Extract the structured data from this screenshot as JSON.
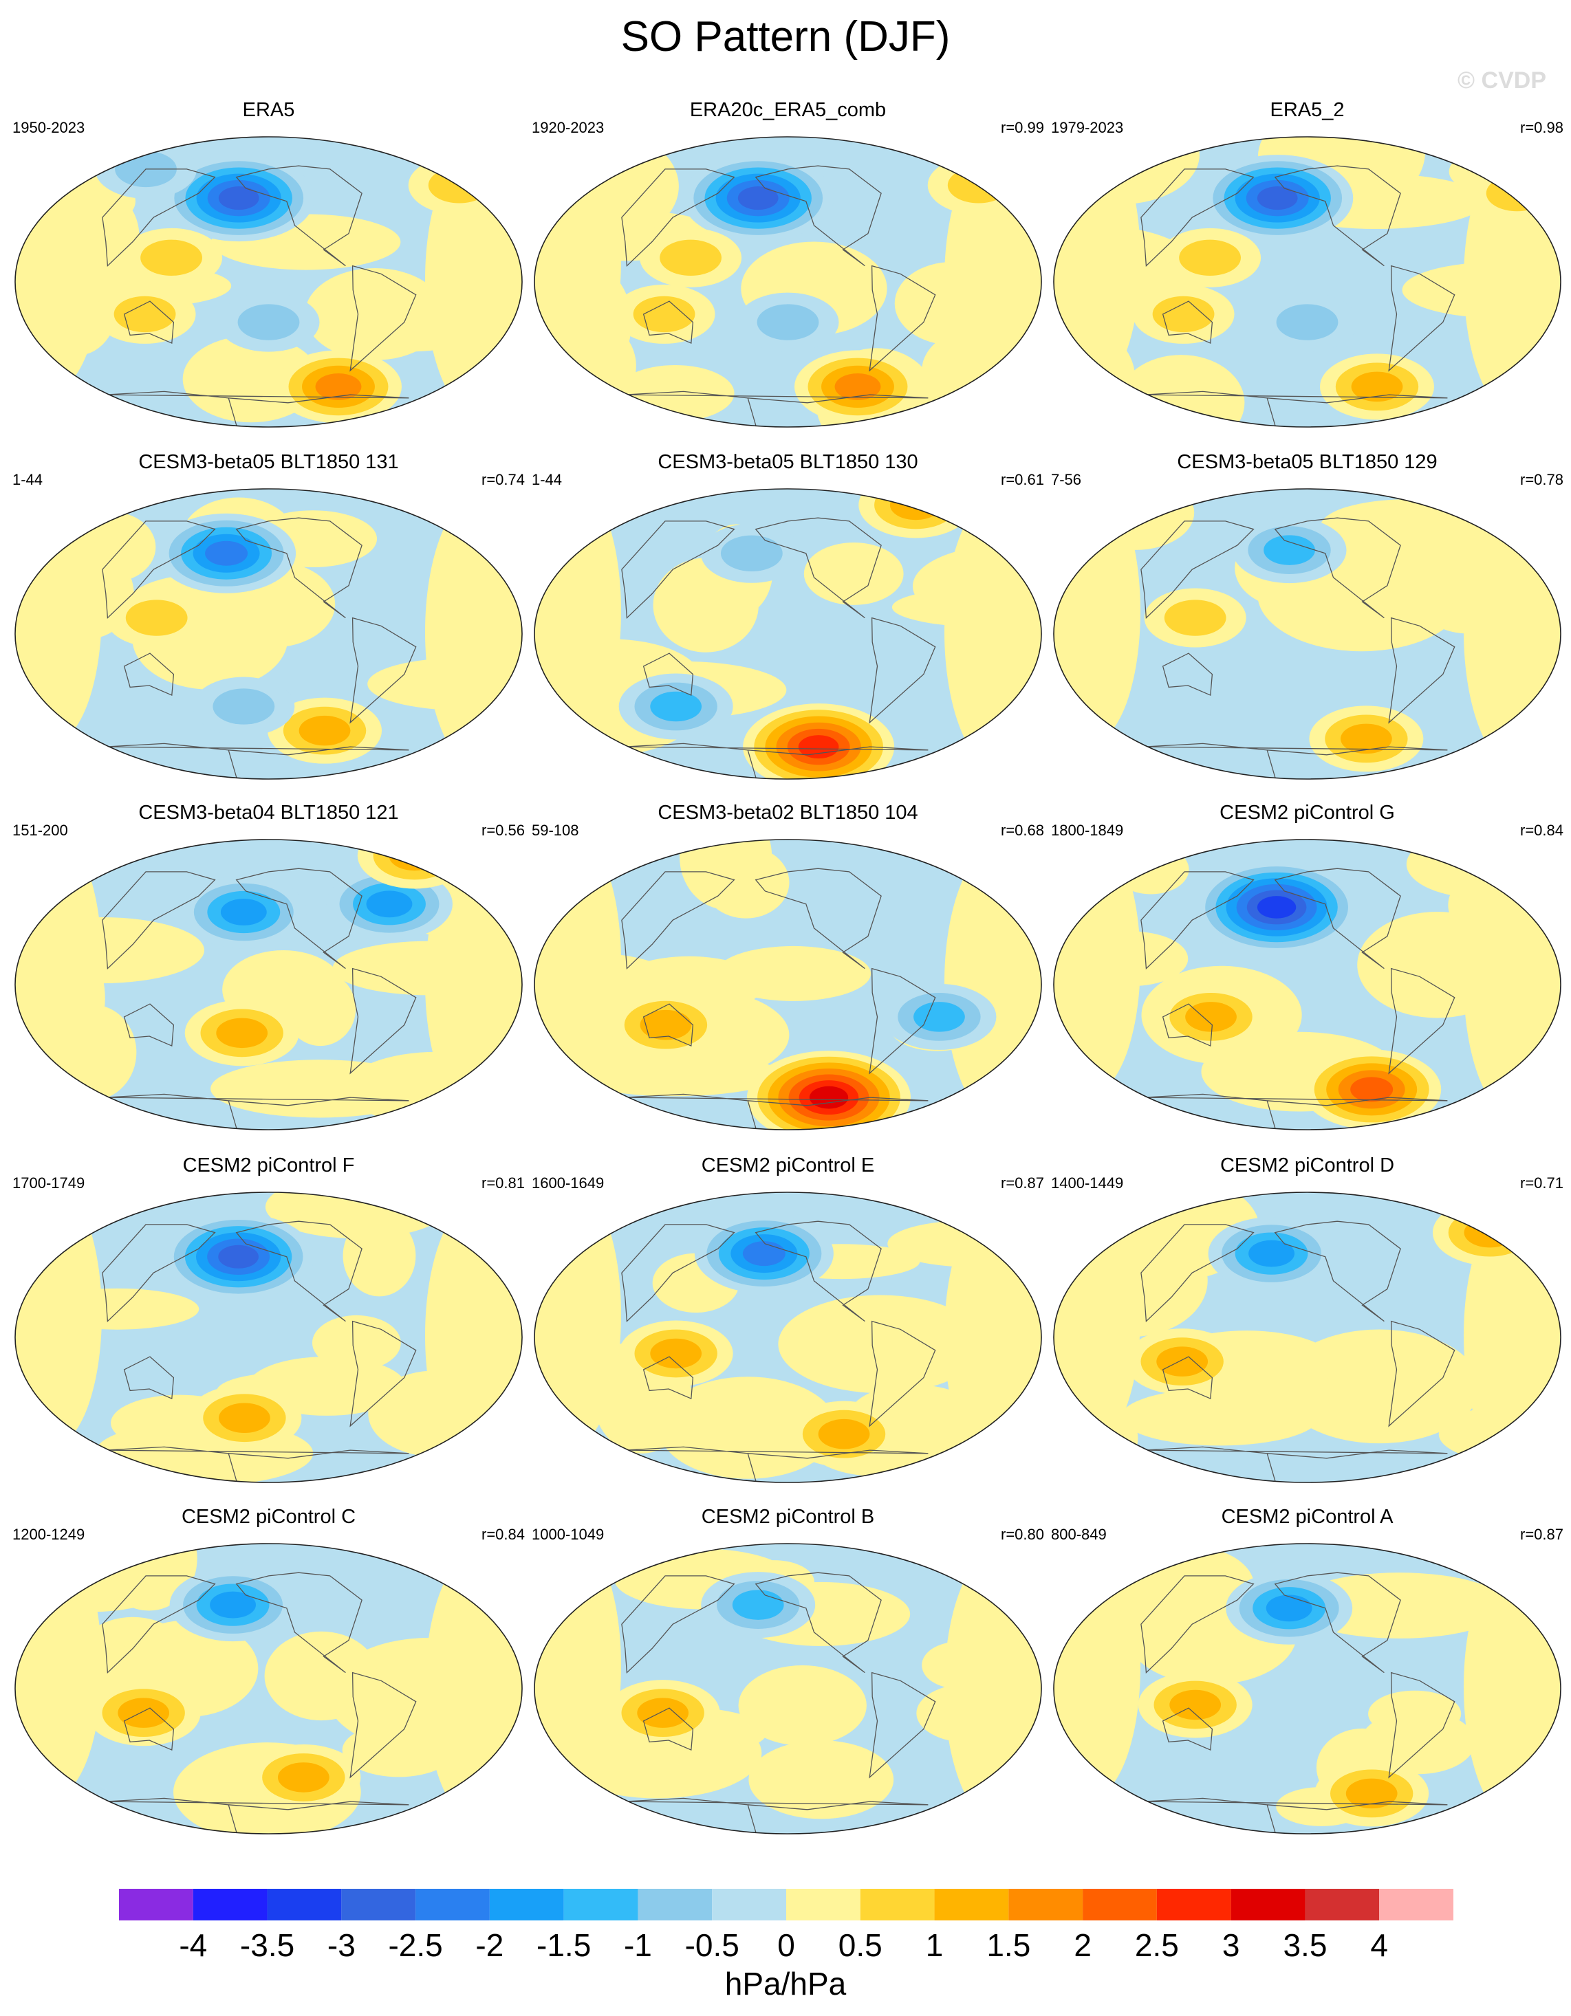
{
  "title": "SO Pattern (DJF)",
  "watermark": "© CVDP",
  "panels": [
    {
      "name": "ERA5",
      "years": "1950-2023",
      "r": ""
    },
    {
      "name": "ERA20c_ERA5_comb",
      "years": "1920-2023",
      "r": "r=0.99"
    },
    {
      "name": "ERA5_2",
      "years": "1979-2023",
      "r": "r=0.98"
    },
    {
      "name": "CESM3-beta05 BLT1850 131",
      "years": "1-44",
      "r": "r=0.74"
    },
    {
      "name": "CESM3-beta05 BLT1850 130",
      "years": "1-44",
      "r": "r=0.61"
    },
    {
      "name": "CESM3-beta05 BLT1850 129",
      "years": "7-56",
      "r": "r=0.78"
    },
    {
      "name": "CESM3-beta04 BLT1850 121",
      "years": "151-200",
      "r": "r=0.56"
    },
    {
      "name": "CESM3-beta02 BLT1850 104",
      "years": "59-108",
      "r": "r=0.68"
    },
    {
      "name": "CESM2 piControl G",
      "years": "1800-1849",
      "r": "r=0.84"
    },
    {
      "name": "CESM2 piControl F",
      "years": "1700-1749",
      "r": "r=0.81"
    },
    {
      "name": "CESM2 piControl E",
      "years": "1600-1649",
      "r": "r=0.87"
    },
    {
      "name": "CESM2 piControl D",
      "years": "1400-1449",
      "r": "r=0.71"
    },
    {
      "name": "CESM2 piControl C",
      "years": "1200-1249",
      "r": "r=0.84"
    },
    {
      "name": "CESM2 piControl B",
      "years": "1000-1049",
      "r": "r=0.80"
    },
    {
      "name": "CESM2 piControl A",
      "years": "800-849",
      "r": "r=0.87"
    }
  ],
  "chart_data": {
    "type": "heatmap",
    "title": "SO Pattern (DJF)",
    "projection": "Robinson global map",
    "colorbar": {
      "units": "hPa/hPa",
      "tick_labels": [
        "-4",
        "-3.5",
        "-3",
        "-2.5",
        "-2",
        "-1.5",
        "-1",
        "-0.5",
        "0",
        "0.5",
        "1",
        "1.5",
        "2",
        "2.5",
        "3",
        "3.5",
        "4"
      ],
      "levels": [
        -4,
        -3.5,
        -3,
        -2.5,
        -2,
        -1.5,
        -1,
        -0.5,
        0,
        0.5,
        1,
        1.5,
        2,
        2.5,
        3,
        3.5,
        4
      ],
      "colors": [
        "#8a2be2",
        "#2020ff",
        "#1a3ff0",
        "#3366e0",
        "#2a80f0",
        "#18a0f8",
        "#33bbf8",
        "#8ccbeb",
        "#b7dff0",
        "#fff59a",
        "#ffd633",
        "#ffb400",
        "#ff8c00",
        "#ff6000",
        "#ff2800",
        "#e00000",
        "#d43030",
        "#ffb0b0"
      ]
    },
    "maps": [
      {
        "panel": "ERA5",
        "features": [
          {
            "lon": -165,
            "lat": 52,
            "value": -2.5
          },
          {
            "lon": 150,
            "lat": 15,
            "value": 0.5
          },
          {
            "lon": 130,
            "lat": -20,
            "value": 0.5
          },
          {
            "lon": -75,
            "lat": -65,
            "value": 1.5
          },
          {
            "lon": -140,
            "lat": -25,
            "value": -0.5
          },
          {
            "lon": 30,
            "lat": 60,
            "value": 0.5
          },
          {
            "lon": 100,
            "lat": 70,
            "value": -0.5
          }
        ]
      },
      {
        "panel": "ERA20c_ERA5_comb",
        "features": [
          {
            "lon": -165,
            "lat": 52,
            "value": -2.5
          },
          {
            "lon": 150,
            "lat": 15,
            "value": 0.5
          },
          {
            "lon": 130,
            "lat": -20,
            "value": 0.5
          },
          {
            "lon": -75,
            "lat": -65,
            "value": 1.5
          },
          {
            "lon": -140,
            "lat": -25,
            "value": -0.5
          },
          {
            "lon": 30,
            "lat": 60,
            "value": 0.5
          }
        ]
      },
      {
        "panel": "ERA5_2",
        "features": [
          {
            "lon": -165,
            "lat": 52,
            "value": -2.5
          },
          {
            "lon": 150,
            "lat": 15,
            "value": 0.5
          },
          {
            "lon": 130,
            "lat": -20,
            "value": 0.5
          },
          {
            "lon": -75,
            "lat": -65,
            "value": 1.0
          },
          {
            "lon": -140,
            "lat": -25,
            "value": -0.5
          },
          {
            "lon": 40,
            "lat": 55,
            "value": 0.5
          }
        ]
      },
      {
        "panel": "CESM3-beta05 BLT1850 131",
        "features": [
          {
            "lon": -175,
            "lat": 50,
            "value": -2.0
          },
          {
            "lon": 140,
            "lat": 10,
            "value": 0.5
          },
          {
            "lon": -90,
            "lat": -60,
            "value": 1.0
          },
          {
            "lon": -160,
            "lat": -45,
            "value": -0.5
          }
        ]
      },
      {
        "panel": "CESM3-beta05 BLT1850 130",
        "features": [
          {
            "lon": -170,
            "lat": 50,
            "value": -0.5
          },
          {
            "lon": 0,
            "lat": 80,
            "value": 1.0
          },
          {
            "lon": -110,
            "lat": -70,
            "value": 2.5
          },
          {
            "lon": 130,
            "lat": -45,
            "value": -1.0
          }
        ]
      },
      {
        "panel": "CESM3-beta05 BLT1850 129",
        "features": [
          {
            "lon": -155,
            "lat": 52,
            "value": -1.0
          },
          {
            "lon": 140,
            "lat": 10,
            "value": 0.5
          },
          {
            "lon": -85,
            "lat": -65,
            "value": 1.0
          }
        ]
      },
      {
        "panel": "CESM3-beta04 BLT1850 121",
        "features": [
          {
            "lon": -160,
            "lat": 45,
            "value": -1.5
          },
          {
            "lon": -40,
            "lat": 50,
            "value": -1.5
          },
          {
            "lon": -160,
            "lat": -30,
            "value": 1.0
          },
          {
            "lon": 20,
            "lat": 80,
            "value": 1.0
          }
        ]
      },
      {
        "panel": "CESM3-beta02 BLT1850 104",
        "features": [
          {
            "lon": -100,
            "lat": -70,
            "value": 3.0
          },
          {
            "lon": -30,
            "lat": -20,
            "value": -1.0
          },
          {
            "lon": 130,
            "lat": -25,
            "value": 1.0
          }
        ]
      },
      {
        "panel": "CESM2 piControl G",
        "features": [
          {
            "lon": -165,
            "lat": 48,
            "value": -3.0
          },
          {
            "lon": 150,
            "lat": -20,
            "value": 1.0
          },
          {
            "lon": -80,
            "lat": -65,
            "value": 2.0
          }
        ]
      },
      {
        "panel": "CESM2 piControl F",
        "features": [
          {
            "lon": -165,
            "lat": 50,
            "value": -2.5
          },
          {
            "lon": -160,
            "lat": -50,
            "value": 1.0
          }
        ]
      },
      {
        "panel": "CESM2 piControl E",
        "features": [
          {
            "lon": -160,
            "lat": 52,
            "value": -2.0
          },
          {
            "lon": 140,
            "lat": -10,
            "value": 1.0
          },
          {
            "lon": -90,
            "lat": -60,
            "value": 1.0
          }
        ]
      },
      {
        "panel": "CESM2 piControl D",
        "features": [
          {
            "lon": -170,
            "lat": 52,
            "value": -1.5
          },
          {
            "lon": 30,
            "lat": 65,
            "value": 1.0
          },
          {
            "lon": 130,
            "lat": -15,
            "value": 1.0
          }
        ]
      },
      {
        "panel": "CESM2 piControl C",
        "features": [
          {
            "lon": -170,
            "lat": 52,
            "value": -1.5
          },
          {
            "lon": 130,
            "lat": -15,
            "value": 1.0
          },
          {
            "lon": -110,
            "lat": -55,
            "value": 1.0
          }
        ]
      },
      {
        "panel": "CESM2 piControl B",
        "features": [
          {
            "lon": -165,
            "lat": 52,
            "value": -1.0
          },
          {
            "lon": 130,
            "lat": -15,
            "value": 1.0
          }
        ]
      },
      {
        "panel": "CESM2 piControl A",
        "features": [
          {
            "lon": -155,
            "lat": 50,
            "value": -1.5
          },
          {
            "lon": 140,
            "lat": -10,
            "value": 1.0
          },
          {
            "lon": -80,
            "lat": -65,
            "value": 1.0
          }
        ]
      }
    ]
  }
}
